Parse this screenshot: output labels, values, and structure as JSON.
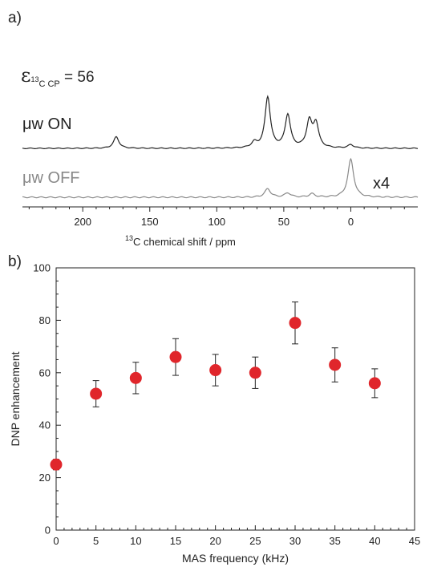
{
  "panel_a": {
    "label": "a)",
    "enhancement_symbol": "ε",
    "enhancement_sub_pre": "13",
    "enhancement_sub_main": "C CP",
    "enhancement_value": " = 56",
    "trace_on_label": "μw ON",
    "trace_off_label": "μw OFF",
    "scale_label": "x4",
    "xlabel_pre": "13",
    "xlabel_main": "C chemical shift / ppm",
    "color_on": "#222222",
    "color_off": "#888888"
  },
  "panel_b": {
    "label": "b)",
    "marker_color": "#e0262b"
  },
  "chart_data": [
    {
      "type": "line",
      "title": "",
      "xlabel": "13C chemical shift / ppm",
      "ylabel": "",
      "xlim": [
        245,
        -50
      ],
      "x_reversed": true,
      "xticks": [
        200,
        150,
        100,
        50,
        0
      ],
      "series": [
        {
          "name": "μw ON",
          "peaks": [
            {
              "ppm": 175,
              "height": 0.2
            },
            {
              "ppm": 72,
              "height": 0.09
            },
            {
              "ppm": 62,
              "height": 0.88
            },
            {
              "ppm": 47,
              "height": 0.57
            },
            {
              "ppm": 31,
              "height": 0.45
            },
            {
              "ppm": 26,
              "height": 0.41
            },
            {
              "ppm": 0,
              "height": 0.06
            }
          ]
        },
        {
          "name": "μw OFF",
          "scale": "x4",
          "peaks": [
            {
              "ppm": 62,
              "height": 0.1
            },
            {
              "ppm": 47,
              "height": 0.05
            },
            {
              "ppm": 29,
              "height": 0.04
            },
            {
              "ppm": 0,
              "height": 0.45
            }
          ]
        }
      ]
    },
    {
      "type": "scatter",
      "title": "",
      "xlabel": "MAS frequency (kHz)",
      "ylabel": "DNP enhancement",
      "xlim": [
        0,
        45
      ],
      "ylim": [
        0,
        100
      ],
      "xticks": [
        0,
        5,
        10,
        15,
        20,
        25,
        30,
        35,
        40,
        45
      ],
      "yticks": [
        0,
        20,
        40,
        60,
        80,
        100
      ],
      "grid": false,
      "points": [
        {
          "x": 0,
          "y": 25,
          "err": 2
        },
        {
          "x": 5,
          "y": 52,
          "err": 5
        },
        {
          "x": 10,
          "y": 58,
          "err": 6
        },
        {
          "x": 15,
          "y": 66,
          "err": 7
        },
        {
          "x": 20,
          "y": 61,
          "err": 6
        },
        {
          "x": 25,
          "y": 60,
          "err": 6
        },
        {
          "x": 30,
          "y": 79,
          "err": 8
        },
        {
          "x": 35,
          "y": 63,
          "err": 6.5
        },
        {
          "x": 40,
          "y": 56,
          "err": 5.5
        }
      ]
    }
  ]
}
